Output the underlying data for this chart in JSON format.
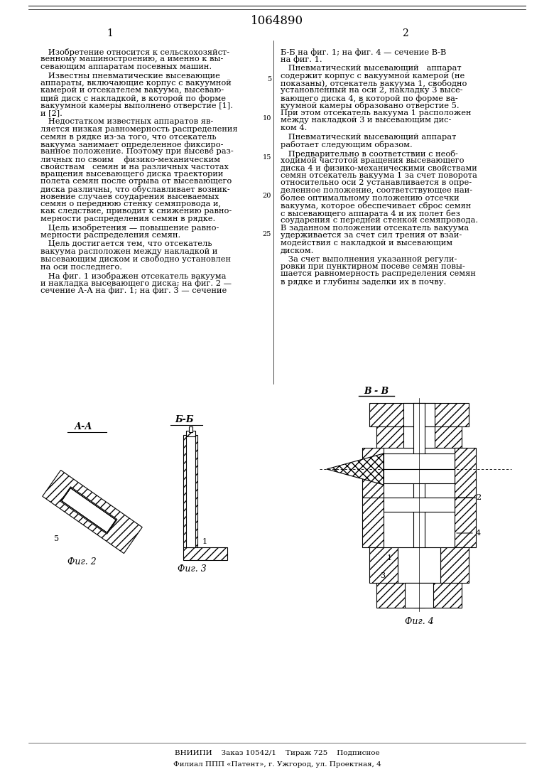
{
  "title": "1064890",
  "col1_num": "1",
  "col2_num": "2",
  "bg_color": "#ffffff",
  "footer_line1": "ВНИИПИ    Заказ 10542/1    Тираж 725    Подписное",
  "footer_line2": "Филиал ППП «Патент», г. Ужгород, ул. Проектная, 4",
  "vv_label": "В - В"
}
